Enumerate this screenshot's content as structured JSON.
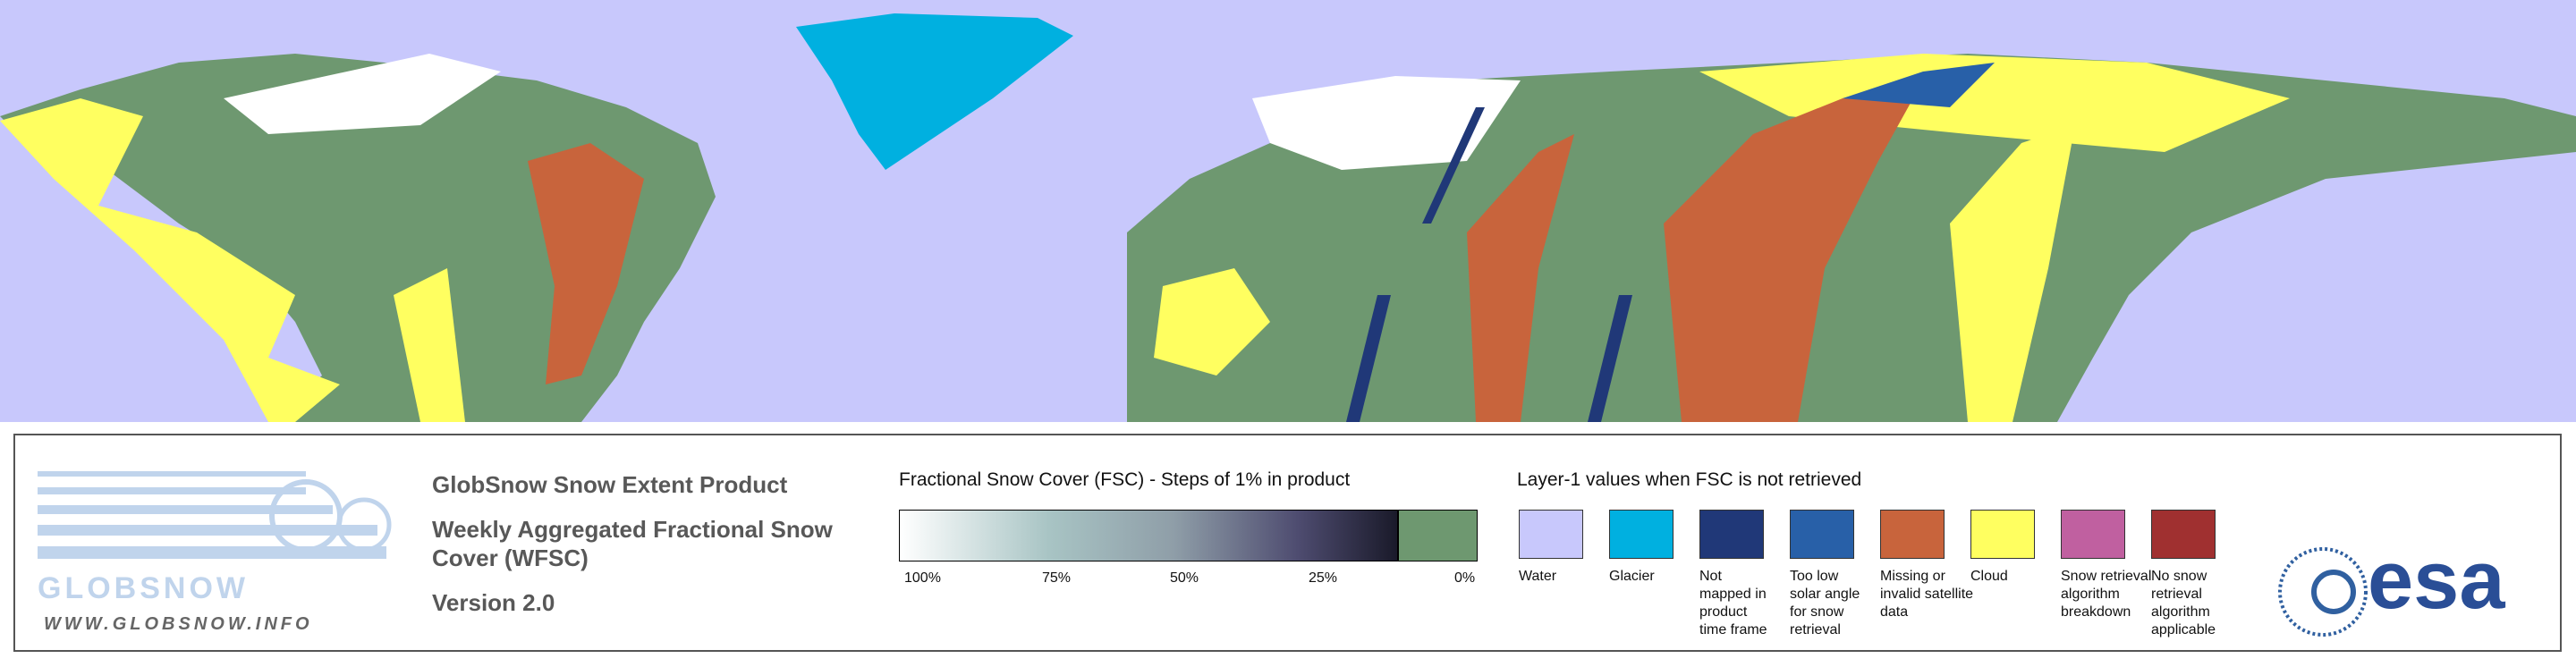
{
  "logo": {
    "name": "GLOBSNOW",
    "url": "WWW.GLOBSNOW.INFO"
  },
  "header": {
    "product": "GlobSnow Snow Extent Product",
    "subtitle_lines": [
      "Weekly Aggregated Fractional Snow",
      "Cover (WFSC)"
    ],
    "version": "Version 2.0"
  },
  "fsc_legend": {
    "title": "Fractional Snow Cover (FSC) - Steps of 1% in product",
    "labels": [
      "100%",
      "75%",
      "50%",
      "25%",
      "0%"
    ]
  },
  "layer1_legend": {
    "title": "Layer-1 values when FSC is not retrieved",
    "items": [
      {
        "label": [
          "Water"
        ],
        "color": "#c8c8fc"
      },
      {
        "label": [
          "Glacier"
        ],
        "color": "#00b0e0"
      },
      {
        "label": [
          "Not",
          "mapped in",
          "product",
          "time frame"
        ],
        "color": "#203878"
      },
      {
        "label": [
          "Too low",
          "solar angle",
          "for snow",
          "retrieval"
        ],
        "color": "#2860a8"
      },
      {
        "label": [
          "Missing or",
          "invalid satellite",
          "data"
        ],
        "color": "#c8643c"
      },
      {
        "label": [
          "Cloud"
        ],
        "color": "#ffff60"
      },
      {
        "label": [
          "Snow retrieval",
          "algorithm",
          "breakdown"
        ],
        "color": "#c060a0"
      },
      {
        "label": [
          "No snow",
          "retrieval",
          "algorithm",
          "applicable"
        ],
        "color": "#a03030"
      }
    ]
  },
  "agency_logo": "esa"
}
